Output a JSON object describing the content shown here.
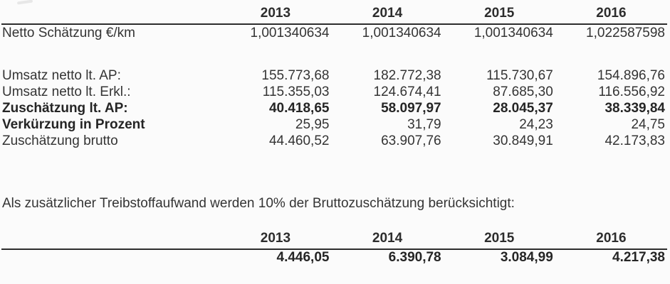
{
  "page": {
    "background_color": "#fbfbfb",
    "text_color": "#343434",
    "rule_color": "#2c2c2c"
  },
  "main_table": {
    "columns": [
      "2013",
      "2014",
      "2015",
      "2016"
    ],
    "rows": [
      {
        "label": "Netto Schätzung €/km",
        "values": [
          "1,001340634",
          "1,001340634",
          "1,001340634",
          "1,022587598"
        ],
        "style": "regular",
        "gap_after": true
      },
      {
        "label": "Umsatz netto lt. AP:",
        "values": [
          "155.773,68",
          "182.772,38",
          "115.730,67",
          "154.896,76"
        ],
        "style": "regular"
      },
      {
        "label": "Umsatz netto lt. Erkl.:",
        "values": [
          "115.355,03",
          "124.674,41",
          "87.685,30",
          "116.556,92"
        ],
        "style": "regular"
      },
      {
        "label": "Zuschätzung lt. AP:",
        "values": [
          "40.418,65",
          "58.097,97",
          "28.045,37",
          "38.339,84"
        ],
        "style": "bold"
      },
      {
        "label": "Verkürzung in Prozent",
        "values": [
          "25,95",
          "31,79",
          "24,23",
          "24,75"
        ],
        "style": "label-bold"
      },
      {
        "label": "Zuschätzung brutto",
        "values": [
          "44.460,52",
          "63.907,76",
          "30.849,91",
          "42.173,83"
        ],
        "style": "regular"
      }
    ]
  },
  "note_text": "Als zusätzlicher Treibstoffaufwand werden 10% der Bruttozuschätzung berücksichtigt:",
  "fuel_table": {
    "columns": [
      "2013",
      "2014",
      "2015",
      "2016"
    ],
    "values": [
      "4.446,05",
      "6.390,78",
      "3.084,99",
      "4.217,38"
    ]
  }
}
